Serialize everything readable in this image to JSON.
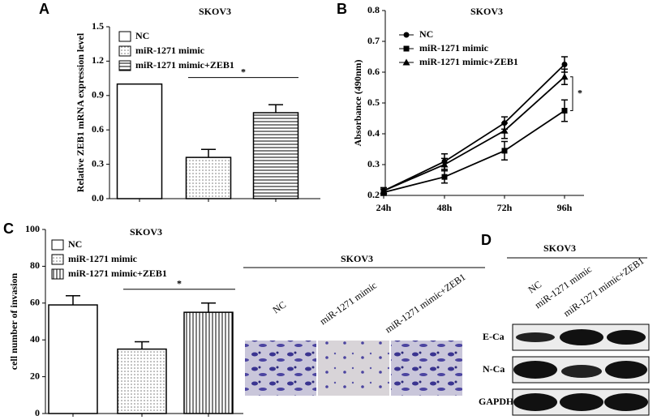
{
  "panels": [
    "A",
    "B",
    "C",
    "D"
  ],
  "chart_data": [
    {
      "type": "bar",
      "title": "SKOV3",
      "ylabel": "Relative ZEB1 mRNA expression level",
      "categories": [
        null,
        null,
        null
      ],
      "values": [
        1.0,
        0.36,
        0.75
      ],
      "errors": [
        0,
        0.07,
        0.07
      ],
      "legend": [
        "NC",
        "miR-1271 mimic",
        "miR-1271 mimic+ZEB1"
      ],
      "ylim": [
        0,
        1.5
      ],
      "yticks": [
        {
          "value": 0,
          "label": "0.0"
        },
        0.3,
        0.6,
        0.9,
        1.2,
        1.5
      ],
      "annotation": "*"
    },
    {
      "type": "line",
      "title": "SKOV3",
      "ylabel": "Absorbance (490nm)",
      "categories": [
        "24h",
        "48h",
        "72h",
        "96h"
      ],
      "series": [
        {
          "name": "NC",
          "values": [
            0.215,
            0.31,
            0.435,
            0.625
          ],
          "errors": [
            0.01,
            0.025,
            0.02,
            0.025
          ]
        },
        {
          "name": "miR-1271 mimic",
          "values": [
            0.21,
            0.26,
            0.345,
            0.475
          ],
          "errors": [
            0.01,
            0.02,
            0.03,
            0.035
          ]
        },
        {
          "name": "miR-1271 mimic+ZEB1",
          "values": [
            0.215,
            0.3,
            0.41,
            0.585
          ],
          "errors": [
            0.01,
            0.02,
            0.025,
            0.025
          ]
        }
      ],
      "ylim": [
        0.2,
        0.8
      ],
      "yticks": [
        0.2,
        0.3,
        0.4,
        0.5,
        0.6,
        0.7,
        0.8
      ],
      "annotation": "*"
    },
    {
      "type": "bar",
      "title": "SKOV3",
      "ylabel": "cell number of invasion",
      "categories": [
        null,
        null,
        null
      ],
      "values": [
        59,
        35,
        55
      ],
      "errors": [
        5,
        4,
        5
      ],
      "legend": [
        "NC",
        "miR-1271 mimic",
        "miR-1271 mimic+ZEB1"
      ],
      "ylim": [
        0,
        100
      ],
      "yticks": [
        0,
        20,
        40,
        60,
        80,
        100
      ],
      "annotation": "*"
    }
  ],
  "micrographs": {
    "title": "SKOV3",
    "labels": [
      "NC",
      "miR-1271 mimic",
      "miR-1271 mimic+ZEB1"
    ]
  },
  "blot": {
    "title": "SKOV3",
    "lanes": [
      "NC",
      "miR-1271 mimic",
      "miR-1271 mimic+ZEB1"
    ],
    "bands": [
      "E-Ca",
      "N-Ca",
      "GAPDH"
    ]
  }
}
